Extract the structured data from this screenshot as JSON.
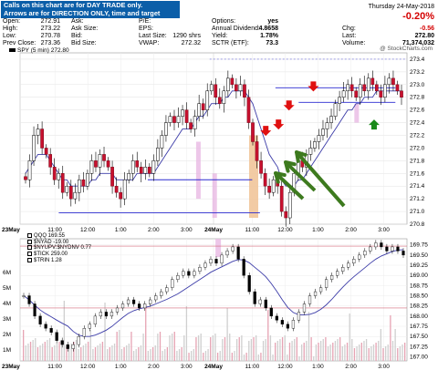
{
  "note": {
    "line1": "Calls on this chart are for DAY TRADE only.",
    "line2": "Arrows are for DIRECTION ONLY, time and target don't count."
  },
  "header": {
    "col1": [
      {
        "label": "Open:",
        "value": "272.91"
      },
      {
        "label": "High:",
        "value": "273.22"
      },
      {
        "label": "Low:",
        "value": "270.78"
      },
      {
        "label": "Prev Close:",
        "value": "273.36"
      }
    ],
    "col2": [
      {
        "label": "Ask:",
        "value": ""
      },
      {
        "label": "Ask Size:",
        "value": ""
      },
      {
        "label": "Bid:",
        "value": ""
      },
      {
        "label": "Bid Size:",
        "value": ""
      }
    ],
    "col3": [
      {
        "label": "P/E:",
        "value": ""
      },
      {
        "label": "EPS:",
        "value": ""
      },
      {
        "label": "Last Size:",
        "value": "1290 shrs"
      },
      {
        "label": "VWAP:",
        "value": "272.32"
      }
    ],
    "col4": [
      {
        "label": "Options:",
        "value": "yes"
      },
      {
        "label": "Annual Dividend:",
        "value": "4.8658"
      },
      {
        "label": "Yield:",
        "value": "1.78%"
      },
      {
        "label": "SCTR (ETF):",
        "value": "73.3"
      }
    ],
    "col5": [
      {
        "label": "Chg:",
        "value": "-0.56"
      },
      {
        "label": "Last:",
        "value": "272.80"
      },
      {
        "label": "Volume:",
        "value": "71,374,032"
      }
    ],
    "date": "Thursday 24-May-2018",
    "pct_change": "-0.20%",
    "credit": "@ StockCharts.com",
    "legend_main": "SPY (5 min) 272.80"
  },
  "lower_legend": {
    "line1": "QQQ 169.55",
    "line2": "$NYAD -19.00",
    "line3": "$NYUPV:$NYDNV 0.77",
    "line4": "$TICK 259.00",
    "line5": "$TRIN 1.28"
  },
  "chart_data": [
    {
      "type": "candlestick",
      "title": "SPY (5 min) 272.80",
      "ylim": [
        270.8,
        273.5
      ],
      "y_ticks": [
        270.8,
        271.0,
        271.2,
        271.4,
        271.6,
        271.8,
        272.0,
        272.2,
        272.4,
        272.6,
        272.8,
        273.0,
        273.2,
        273.4
      ],
      "x_tick_labels": [
        "23May",
        "11:00",
        "12:00",
        "1:00",
        "2:00",
        "3:00",
        "24May",
        "11:00",
        "12:00",
        "1:00",
        "2:00",
        "3:00"
      ],
      "close_series": [
        271.5,
        271.8,
        272.2,
        272.3,
        272.0,
        271.9,
        271.7,
        271.5,
        271.6,
        271.3,
        271.4,
        271.2,
        271.3,
        271.5,
        271.4,
        271.6,
        271.8,
        271.7,
        271.9,
        271.8,
        271.7,
        271.4,
        271.3,
        271.2,
        271.5,
        271.6,
        271.8,
        271.7,
        271.6,
        271.7,
        271.6,
        271.8,
        272.0,
        272.2,
        272.4,
        272.5,
        272.4,
        272.5,
        272.6,
        272.4,
        272.3,
        272.5,
        272.7,
        272.6,
        272.9,
        273.0,
        272.8,
        272.7,
        272.9,
        273.1,
        273.0,
        272.9,
        273.0,
        272.8,
        272.4,
        272.1,
        271.8,
        271.6,
        271.4,
        271.3,
        271.5,
        271.4,
        271.0,
        270.9,
        271.3,
        271.6,
        271.8,
        271.7,
        271.9,
        272.0,
        272.1,
        272.2,
        272.3,
        272.4,
        272.5,
        272.7,
        272.8,
        272.9,
        273.0,
        272.9,
        272.8,
        273.0,
        272.9,
        273.1,
        273.0,
        272.9,
        272.8,
        273.0,
        273.1,
        273.0,
        272.9,
        272.8
      ],
      "moving_average": [
        271.6,
        271.7,
        271.8,
        271.9,
        271.9,
        271.9,
        271.8,
        271.7,
        271.6,
        271.5,
        271.5,
        271.4,
        271.4,
        271.4,
        271.4,
        271.4,
        271.5,
        271.5,
        271.6,
        271.6,
        271.6,
        271.6,
        271.5,
        271.5,
        271.5,
        271.5,
        271.5,
        271.6,
        271.6,
        271.6,
        271.6,
        271.6,
        271.7,
        271.8,
        271.9,
        272.0,
        272.1,
        272.2,
        272.3,
        272.3,
        272.3,
        272.4,
        272.5,
        272.5,
        272.6,
        272.7,
        272.7,
        272.7,
        272.8,
        272.8,
        272.9,
        272.9,
        272.9,
        272.9,
        272.8,
        272.7,
        272.5,
        272.3,
        272.1,
        271.9,
        271.8,
        271.7,
        271.5,
        271.4,
        271.4,
        271.4,
        271.5,
        271.5,
        271.6,
        271.7,
        271.8,
        271.9,
        272.0,
        272.1,
        272.2,
        272.3,
        272.4,
        272.5,
        272.6,
        272.6,
        272.7,
        272.7,
        272.8,
        272.8,
        272.8,
        272.9,
        272.9,
        272.9,
        272.9,
        272.9,
        272.9,
        272.9
      ],
      "annotations": {
        "down_arrows_at": [
          272.1,
          272.3,
          272.6,
          272.6
        ],
        "up_arrow_at": 272.3,
        "horizontal_levels": [
          271.5,
          270.98,
          272.95,
          272.72,
          273.4
        ]
      }
    },
    {
      "type": "line",
      "title": "QQQ 169.55",
      "ylim": [
        166.9,
        169.9
      ],
      "y_ticks": [
        167.0,
        167.25,
        167.5,
        167.75,
        168.0,
        168.25,
        168.5,
        168.75,
        169.0,
        169.25,
        169.5,
        169.75
      ],
      "volume_y_labels": [
        "1M",
        "2M",
        "3M",
        "4M",
        "5M",
        "6M"
      ],
      "close_series": [
        168.5,
        168.3,
        168.0,
        167.8,
        167.7,
        167.6,
        167.4,
        167.3,
        167.2,
        167.3,
        167.5,
        167.7,
        167.8,
        168.0,
        168.1,
        168.0,
        168.1,
        168.2,
        168.3,
        168.4,
        168.3,
        168.2,
        168.3,
        168.4,
        168.5,
        168.6,
        168.7,
        168.9,
        169.0,
        169.1,
        169.0,
        169.1,
        169.2,
        169.3,
        169.4,
        169.3,
        169.5,
        169.6,
        169.7,
        169.4,
        169.0,
        168.6,
        168.3,
        168.4,
        168.2,
        168.0,
        167.9,
        167.8,
        167.7,
        167.9,
        168.1,
        168.3,
        168.5,
        168.6,
        168.7,
        168.9,
        169.0,
        169.1,
        169.2,
        169.3,
        169.4,
        169.5,
        169.6,
        169.7,
        169.8,
        169.7,
        169.6,
        169.7,
        169.6,
        169.5
      ],
      "red_level": 168.2
    }
  ]
}
